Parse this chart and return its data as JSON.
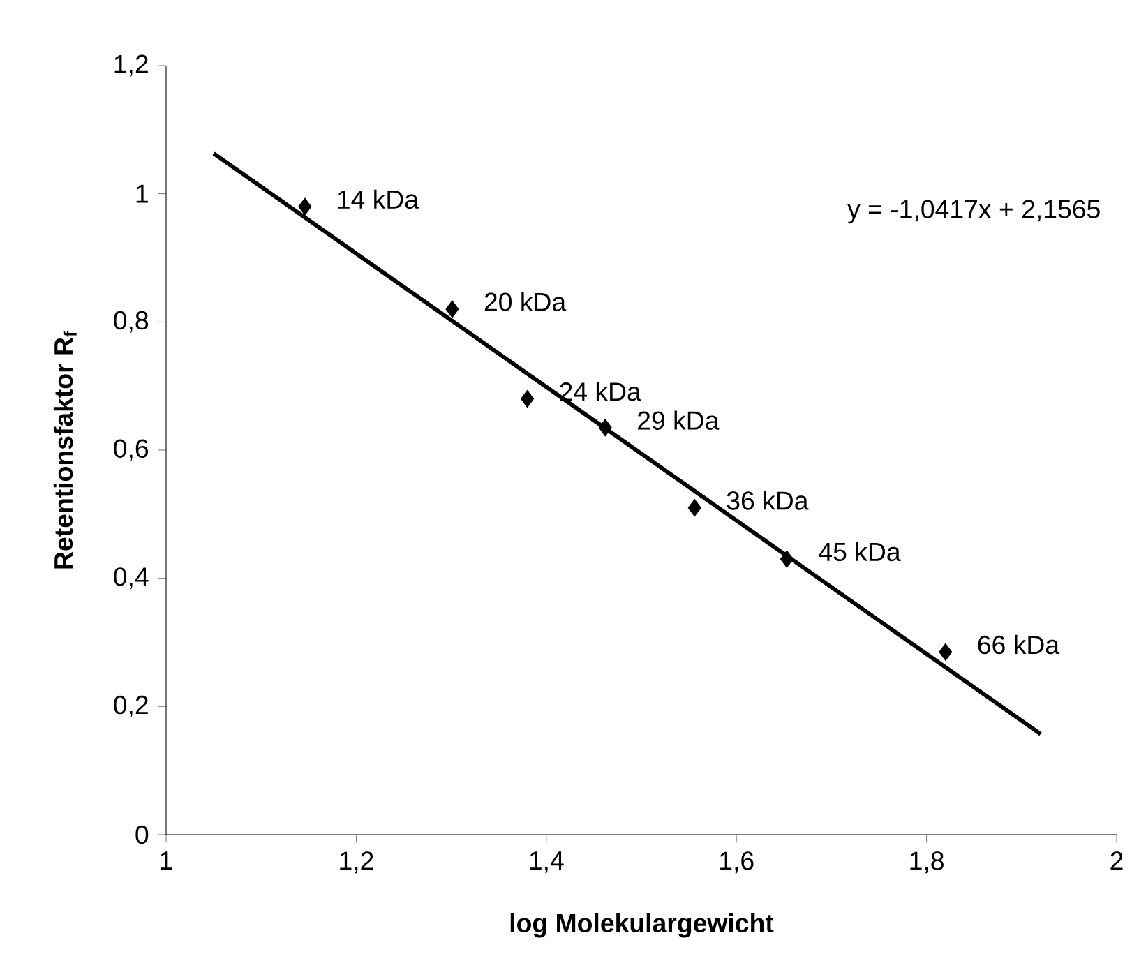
{
  "chart_data": {
    "type": "scatter",
    "xlabel": "log Molekulargewicht",
    "ylabel": "Retentionsfaktor R$_{f}$",
    "marker": "diamond",
    "xlim": [
      1,
      2
    ],
    "ylim": [
      0,
      1.2
    ],
    "xticks": [
      1,
      {
        "value": 1.2,
        "label": "1,2"
      },
      {
        "value": 1.4,
        "label": "1,4"
      },
      {
        "value": 1.6,
        "label": "1,6"
      },
      {
        "value": 1.8,
        "label": "1,8"
      },
      2
    ],
    "yticks": [
      0,
      {
        "value": 0.2,
        "label": "0,2"
      },
      {
        "value": 0.4,
        "label": "0,4"
      },
      {
        "value": 0.6,
        "label": "0,6"
      },
      {
        "value": 0.8,
        "label": "0,8"
      },
      1,
      {
        "value": 1.2,
        "label": "1,2"
      }
    ],
    "series": [
      {
        "color": "#000000",
        "x": [
          1.146,
          1.301,
          1.38,
          1.462,
          1.556,
          1.653,
          1.82
        ],
        "values": [
          0.98,
          0.82,
          0.68,
          0.635,
          0.51,
          0.43,
          0.285
        ]
      },
      {
        "type": "line",
        "color": "#000000",
        "marker": "none",
        "x": [
          1.05,
          1.92
        ],
        "values": [
          1.063,
          0.157
        ]
      }
    ],
    "annotations": [
      {
        "text": "14 kDa",
        "x": 1.146,
        "y": 0.98
      },
      {
        "text": "20 kDa",
        "x": 1.301,
        "y": 0.82
      },
      {
        "text": "24 kDa",
        "x": 1.38,
        "y": 0.68
      },
      {
        "text": "29 kDa",
        "x": 1.462,
        "y": 0.635
      },
      {
        "text": "36 kDa",
        "x": 1.556,
        "y": 0.51
      },
      {
        "text": "45 kDa",
        "x": 1.653,
        "y": 0.43
      },
      {
        "text": "66 kDa",
        "x": 1.82,
        "y": 0.285
      },
      "y = -1,0417x + 2,1565"
    ]
  }
}
